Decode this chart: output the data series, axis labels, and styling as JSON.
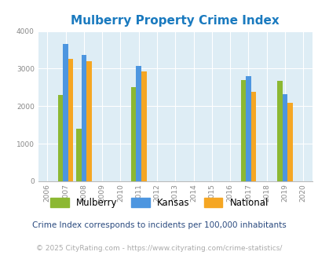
{
  "title": "Mulberry Property Crime Index",
  "title_color": "#1a7abf",
  "years": [
    2007,
    2008,
    2011,
    2017,
    2019
  ],
  "x_ticks": [
    2006,
    2007,
    2008,
    2009,
    2010,
    2011,
    2012,
    2013,
    2014,
    2015,
    2016,
    2017,
    2018,
    2019,
    2020
  ],
  "mulberry": [
    2300,
    1400,
    2500,
    2700,
    2670
  ],
  "kansas": [
    3650,
    3360,
    3080,
    2810,
    2320
  ],
  "national": [
    3260,
    3190,
    2920,
    2380,
    2100
  ],
  "mulberry_color": "#8cb832",
  "kansas_color": "#4d96e0",
  "national_color": "#f5a623",
  "bg_color": "#deedf5",
  "ylim": [
    0,
    4000
  ],
  "yticks": [
    0,
    1000,
    2000,
    3000,
    4000
  ],
  "bar_width": 0.28,
  "legend_labels": [
    "Mulberry",
    "Kansas",
    "National"
  ],
  "footnote1": "Crime Index corresponds to incidents per 100,000 inhabitants",
  "footnote2": "© 2025 CityRating.com - https://www.cityrating.com/crime-statistics/",
  "footnote1_color": "#2a4a7f",
  "footnote2_color": "#aaaaaa",
  "grid_color": "#ffffff"
}
